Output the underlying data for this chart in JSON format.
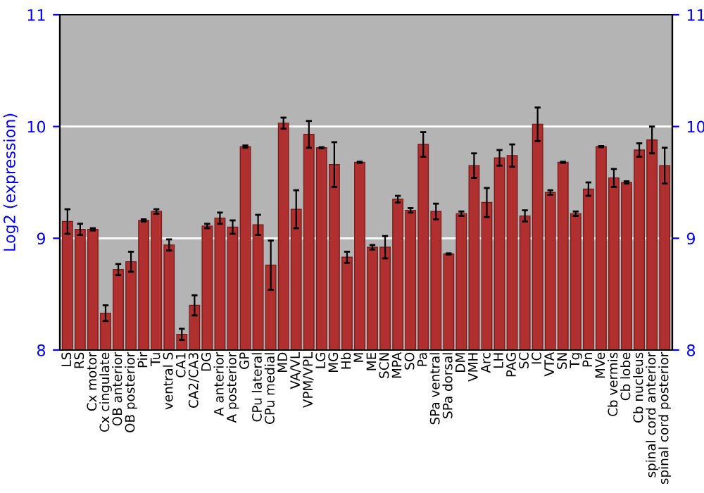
{
  "chart_data": {
    "type": "bar",
    "ylabel": "Log2 (expression)",
    "categories": [
      "LS",
      "RS",
      "Cx motor",
      "Cx cingulate",
      "OB anterior",
      "OB posterior",
      "Pir",
      "Tu",
      "ventral S",
      "CA1",
      "CA2/CA3",
      "DG",
      "A anterior",
      "A posterior",
      "GP",
      "CPu lateral",
      "CPu medial",
      "MD",
      "VA/VL",
      "VPM/VPL",
      "LG",
      "MG",
      "Hb",
      "M",
      "ME",
      "SCN",
      "MPA",
      "SO",
      "Pa",
      "SPa ventral",
      "SPa dorsal",
      "DM",
      "VMH",
      "Arc",
      "LH",
      "PAG",
      "SC",
      "IC",
      "VTA",
      "SN",
      "Tg",
      "Pn",
      "MVe",
      "Cb vermis",
      "Cb lobe",
      "Cb nucleus",
      "spinal cord anterior",
      "spinal cord posterior"
    ],
    "values": [
      9.15,
      9.08,
      9.08,
      8.33,
      8.72,
      8.79,
      9.16,
      9.24,
      8.94,
      8.14,
      8.4,
      9.11,
      9.18,
      9.1,
      9.82,
      9.12,
      8.76,
      10.03,
      9.26,
      9.93,
      9.81,
      9.66,
      8.83,
      9.68,
      8.92,
      8.92,
      9.35,
      9.25,
      9.84,
      9.24,
      8.86,
      9.22,
      9.65,
      9.32,
      9.72,
      9.74,
      9.2,
      10.02,
      9.41,
      9.68,
      9.22,
      9.44,
      9.82,
      9.54,
      9.5,
      9.79,
      9.88,
      9.65
    ],
    "errors": [
      0.11,
      0.05,
      0.01,
      0.07,
      0.05,
      0.09,
      0.01,
      0.02,
      0.05,
      0.05,
      0.09,
      0.02,
      0.05,
      0.06,
      0.01,
      0.09,
      0.22,
      0.05,
      0.17,
      0.12,
      0.005,
      0.2,
      0.05,
      0.005,
      0.02,
      0.1,
      0.03,
      0.02,
      0.11,
      0.07,
      0.005,
      0.02,
      0.11,
      0.13,
      0.07,
      0.1,
      0.05,
      0.15,
      0.02,
      0.005,
      0.02,
      0.06,
      0.005,
      0.08,
      0.01,
      0.06,
      0.12,
      0.16
    ],
    "color": "#b03030",
    "ylim": [
      8,
      11
    ],
    "yticks": [
      8,
      9,
      10,
      11
    ],
    "y2lim": [
      8,
      11
    ],
    "y2ticks": [
      8,
      9,
      10,
      11
    ],
    "grid": "y",
    "legend": false
  }
}
